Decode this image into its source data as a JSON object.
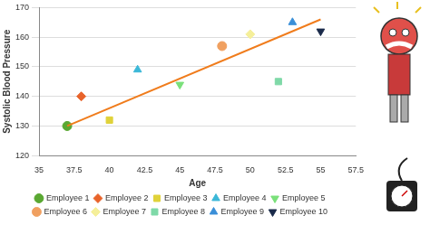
{
  "chart_data": {
    "type": "scatter",
    "x_label": "Age",
    "y_label": "Systolic Blood Pressure",
    "xlim": [
      35,
      57.5
    ],
    "xticks": [
      35,
      37.5,
      40,
      42.5,
      45,
      47.5,
      50,
      52.5,
      55,
      57.5
    ],
    "ylim": [
      120,
      170
    ],
    "yticks": [
      120,
      130,
      140,
      150,
      160,
      170
    ],
    "grid": true,
    "legend": "bottom",
    "series": [
      {
        "type": "line",
        "color": "#f07c1c",
        "x": [
          37,
          55
        ],
        "values": [
          130,
          166
        ]
      },
      {
        "name": "Employee 1",
        "color": "#5aa832",
        "marker": "circle",
        "x": [
          37
        ],
        "values": [
          130
        ]
      },
      {
        "name": "Employee 2",
        "color": "#e8632a",
        "marker": "diamond",
        "x": [
          38
        ],
        "values": [
          140
        ]
      },
      {
        "name": "Employee 3",
        "color": "#e0d23a",
        "marker": "square",
        "x": [
          40
        ],
        "values": [
          132
        ]
      },
      {
        "name": "Employee 4",
        "color": "#3cb8d8",
        "marker": "triangle",
        "x": [
          42
        ],
        "values": [
          149
        ]
      },
      {
        "name": "Employee 5",
        "color": "#7ae07a",
        "marker": "triangle-down",
        "x": [
          45
        ],
        "values": [
          144
        ]
      },
      {
        "name": "Employee 6",
        "color": "#f0a060",
        "marker": "circle",
        "x": [
          48
        ],
        "values": [
          157
        ]
      },
      {
        "name": "Employee 7",
        "color": "#f5ef9a",
        "marker": "diamond",
        "x": [
          50
        ],
        "values": [
          161
        ]
      },
      {
        "name": "Employee 8",
        "color": "#7fd9a8",
        "marker": "square",
        "x": [
          52
        ],
        "values": [
          145
        ]
      },
      {
        "name": "Employee 9",
        "color": "#3a8fd8",
        "marker": "triangle",
        "x": [
          53
        ],
        "values": [
          165
        ]
      },
      {
        "name": "Employee 10",
        "color": "#1a2a4a",
        "marker": "triangle-down",
        "x": [
          55
        ],
        "values": [
          162
        ]
      }
    ]
  }
}
